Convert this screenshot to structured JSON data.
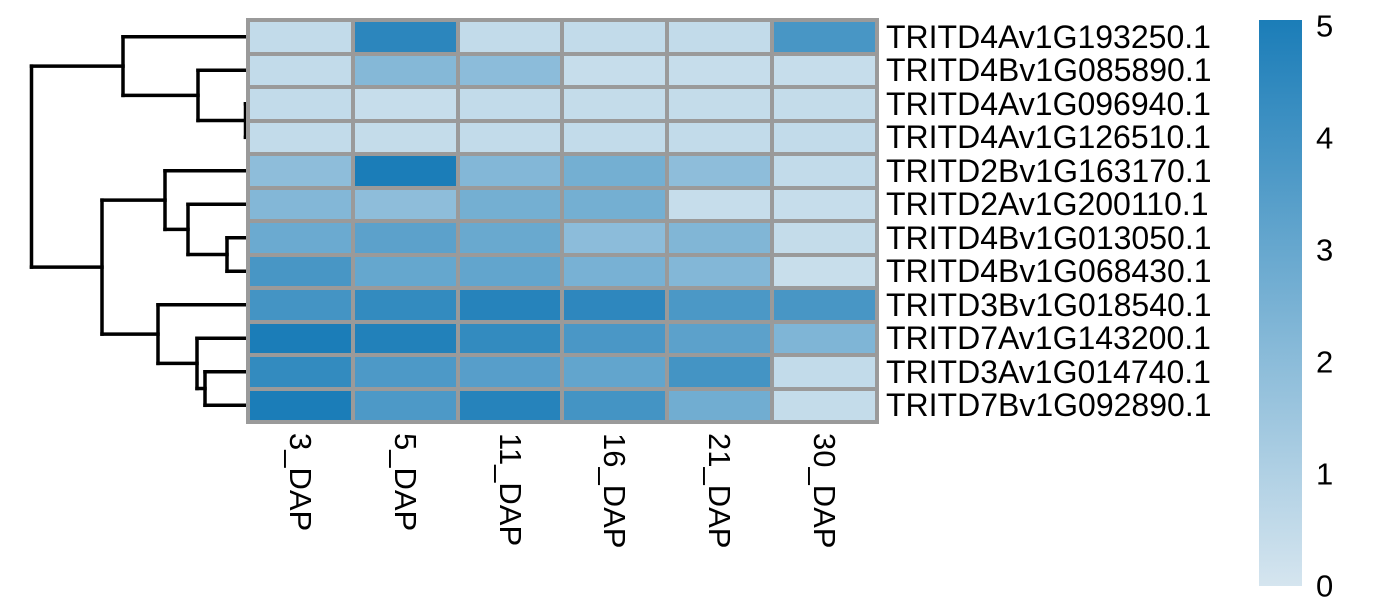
{
  "figure": {
    "background": "#ffffff",
    "grid_color": "#9a9a9a",
    "dendrogram_color": "#000000",
    "label_color": "#000000"
  },
  "chart_data": {
    "type": "heatmap",
    "title": "",
    "columns": [
      "3_DAP",
      "5_DAP",
      "11_DAP",
      "16_DAP",
      "21_DAP",
      "30_DAP"
    ],
    "rows": [
      "TRITD4Av1G193250.1",
      "TRITD4Bv1G085890.1",
      "TRITD4Av1G096940.1",
      "TRITD4Av1G126510.1",
      "TRITD2Bv1G163170.1",
      "TRITD2Av1G200110.1",
      "TRITD4Bv1G013050.1",
      "TRITD4Bv1G068430.1",
      "TRITD3Bv1G018540.1",
      "TRITD7Av1G143200.1",
      "TRITD3Av1G014740.1",
      "TRITD7Bv1G092890.1"
    ],
    "values": [
      [
        0.5,
        4.55,
        0.5,
        0.5,
        0.5,
        3.8
      ],
      [
        0.5,
        2.15,
        1.95,
        0.4,
        0.4,
        0.4
      ],
      [
        0.5,
        0.4,
        0.5,
        0.45,
        0.45,
        0.45
      ],
      [
        0.5,
        0.45,
        0.5,
        0.5,
        0.5,
        0.5
      ],
      [
        1.9,
        5.0,
        2.2,
        2.6,
        1.9,
        0.5
      ],
      [
        2.2,
        1.9,
        2.6,
        2.6,
        0.4,
        0.4
      ],
      [
        2.85,
        3.25,
        2.9,
        1.95,
        2.25,
        0.45
      ],
      [
        3.8,
        3.0,
        3.1,
        2.5,
        2.2,
        0.35
      ],
      [
        3.9,
        4.35,
        4.7,
        4.5,
        3.7,
        3.8
      ],
      [
        5.0,
        4.8,
        4.35,
        3.75,
        3.25,
        2.3
      ],
      [
        4.35,
        3.65,
        3.4,
        3.1,
        3.9,
        0.5
      ],
      [
        5.0,
        3.65,
        4.7,
        3.9,
        2.7,
        0.45
      ]
    ],
    "scale": {
      "min": 0,
      "max": 5,
      "low_color": "#d5e5ef",
      "high_color": "#1b7db8"
    },
    "legend": {
      "position": "right",
      "ticks": [
        "5",
        "4",
        "3",
        "2",
        "1",
        "0"
      ]
    },
    "dendrogram": {
      "orientation": "left",
      "segments": [
        [
          245.5,
          103.8,
          250,
          103.8
        ],
        [
          245.5,
          137.3,
          250,
          137.3
        ],
        [
          245.5,
          103.8,
          245.5,
          137.3
        ],
        [
          198,
          70.3,
          250,
          70.3
        ],
        [
          198,
          120.5,
          245.5,
          120.5
        ],
        [
          198,
          70.3,
          198,
          120.5
        ],
        [
          123,
          36.8,
          250,
          36.8
        ],
        [
          123,
          95.4,
          198,
          95.4
        ],
        [
          123,
          36.8,
          123,
          95.4
        ],
        [
          227,
          237.8,
          250,
          237.8
        ],
        [
          227,
          271.3,
          250,
          271.3
        ],
        [
          227,
          237.8,
          227,
          271.3
        ],
        [
          188,
          204.3,
          250,
          204.3
        ],
        [
          188,
          254.5,
          227,
          254.5
        ],
        [
          188,
          204.3,
          188,
          254.5
        ],
        [
          165,
          170.8,
          250,
          170.8
        ],
        [
          165,
          229.4,
          188,
          229.4
        ],
        [
          165,
          170.8,
          165,
          229.4
        ],
        [
          205,
          371.8,
          250,
          371.8
        ],
        [
          205,
          405.3,
          250,
          405.3
        ],
        [
          205,
          371.8,
          205,
          405.3
        ],
        [
          197,
          338.3,
          250,
          338.3
        ],
        [
          197,
          388.5,
          205,
          388.5
        ],
        [
          197,
          338.3,
          197,
          388.5
        ],
        [
          158,
          304.8,
          250,
          304.8
        ],
        [
          158,
          363.4,
          197,
          363.4
        ],
        [
          158,
          304.8,
          158,
          363.4
        ],
        [
          102,
          200.1,
          165,
          200.1
        ],
        [
          102,
          334.1,
          158,
          334.1
        ],
        [
          102,
          200.1,
          102,
          334.1
        ],
        [
          31.5,
          66.1,
          123,
          66.1
        ],
        [
          31.5,
          267.1,
          102,
          267.1
        ],
        [
          31.5,
          66.1,
          31.5,
          267.1
        ]
      ]
    }
  }
}
